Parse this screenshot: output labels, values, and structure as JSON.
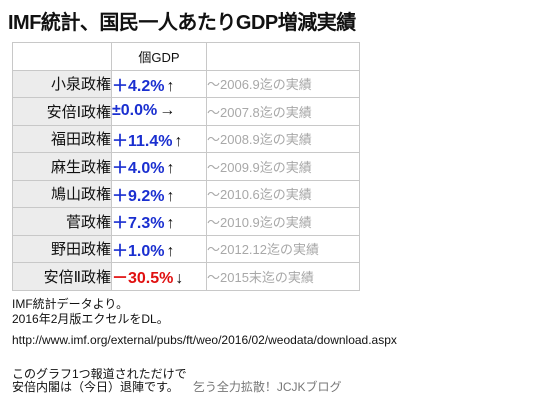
{
  "title": "IMF統計、国民一人あたりGDP増減実績",
  "chart_data": {
    "type": "table",
    "column_header": "個GDP",
    "rows": [
      {
        "administration": "小泉政権",
        "value": "＋4.2%",
        "arrow": "↑",
        "period": "～2006.9迄の実績",
        "color": "#1a2fd0"
      },
      {
        "administration": "安倍Ⅰ政権",
        "value": "±0.0%",
        "arrow": "→",
        "period": "～2007.8迄の実績",
        "color": "#1a2fd0"
      },
      {
        "administration": "福田政権",
        "value": "＋11.4%",
        "arrow": "↑",
        "period": "～2008.9迄の実績",
        "color": "#1a2fd0"
      },
      {
        "administration": "麻生政権",
        "value": "＋4.0%",
        "arrow": "↑",
        "period": "～2009.9迄の実績",
        "color": "#1a2fd0"
      },
      {
        "administration": "鳩山政権",
        "value": "＋9.2%",
        "arrow": "↑",
        "period": "～2010.6迄の実績",
        "color": "#1a2fd0"
      },
      {
        "administration": "菅政権",
        "value": "＋7.3%",
        "arrow": "↑",
        "period": "～2010.9迄の実績",
        "color": "#1a2fd0"
      },
      {
        "administration": "野田政権",
        "value": "＋1.0%",
        "arrow": "↑",
        "period": "～2012.12迄の実績",
        "color": "#1a2fd0"
      },
      {
        "administration": "安倍Ⅱ政権",
        "value": "－30.5%",
        "arrow": "↓",
        "period": "～2015末迄の実績",
        "color": "#e01010"
      }
    ]
  },
  "source": {
    "line1": "IMF統計データより。",
    "line2": "2016年2月版エクセルをDL。",
    "url": "http://www.imf.org/external/pubs/ft/weo/2016/02/weodata/download.aspx"
  },
  "footer": {
    "line1": "このグラフ1つ報道されただけで",
    "line2": "安倍内閣は（今日）退陣です。",
    "credit": "乞う全力拡散！JCJKブログ"
  }
}
